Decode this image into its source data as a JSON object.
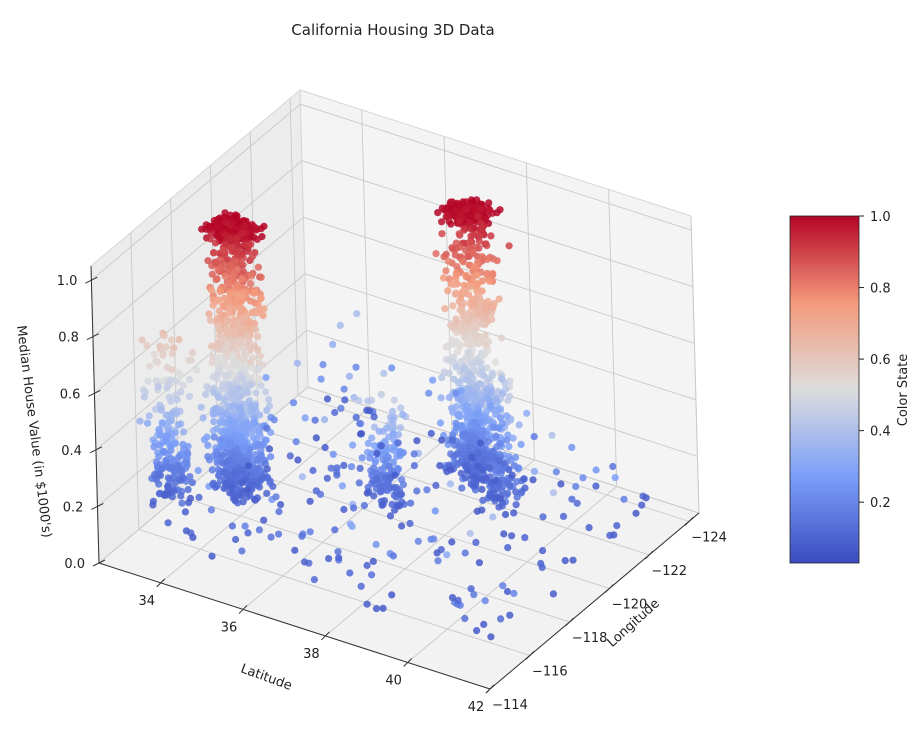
{
  "chart_data": {
    "type": "scatter",
    "dimensions": 3,
    "title": "California Housing 3D Data",
    "xlabel": "Latitude",
    "ylabel": "Longitude",
    "zlabel": "Median House Value (in $1000's)",
    "xlim": [
      32.5,
      42
    ],
    "ylim": [
      -114,
      -124.5
    ],
    "zlim": [
      0,
      1.05
    ],
    "x_ticks": [
      34,
      36,
      38,
      40,
      42
    ],
    "y_ticks": [
      -124,
      -122,
      -120,
      -118,
      -116,
      -114
    ],
    "z_ticks": [
      0.0,
      0.2,
      0.4,
      0.6,
      0.8,
      1.0
    ],
    "x_tick_labels": [
      "34",
      "36",
      "38",
      "40",
      "42"
    ],
    "y_tick_labels": [
      "−124",
      "−122",
      "−120",
      "−118",
      "−116",
      "−114"
    ],
    "z_tick_labels": [
      "0.0",
      "0.2",
      "0.4",
      "0.6",
      "0.8",
      "1.0"
    ],
    "grid": true,
    "colormap": "coolwarm",
    "colorbar": {
      "label": "Color State",
      "range": [
        0.03,
        1.0
      ],
      "ticks": [
        0.2,
        0.4,
        0.6,
        0.8,
        1.0
      ],
      "tick_labels": [
        "0.2",
        "0.4",
        "0.6",
        "0.8",
        "1.0"
      ]
    },
    "clusters": [
      {
        "lat": 33.9,
        "lon": -118.2,
        "z_max": 1.0,
        "share": 0.45
      },
      {
        "lat": 37.7,
        "lon": -122.2,
        "z_max": 1.0,
        "share": 0.35
      },
      {
        "lat": 32.8,
        "lon": -117.1,
        "z_max": 0.5,
        "share": 0.08
      },
      {
        "lat": 38.6,
        "lon": -121.4,
        "z_max": 0.4,
        "share": 0.06
      },
      {
        "lat": 36.7,
        "lon": -119.8,
        "z_max": 0.3,
        "share": 0.06
      }
    ],
    "point_count": 2400
  }
}
